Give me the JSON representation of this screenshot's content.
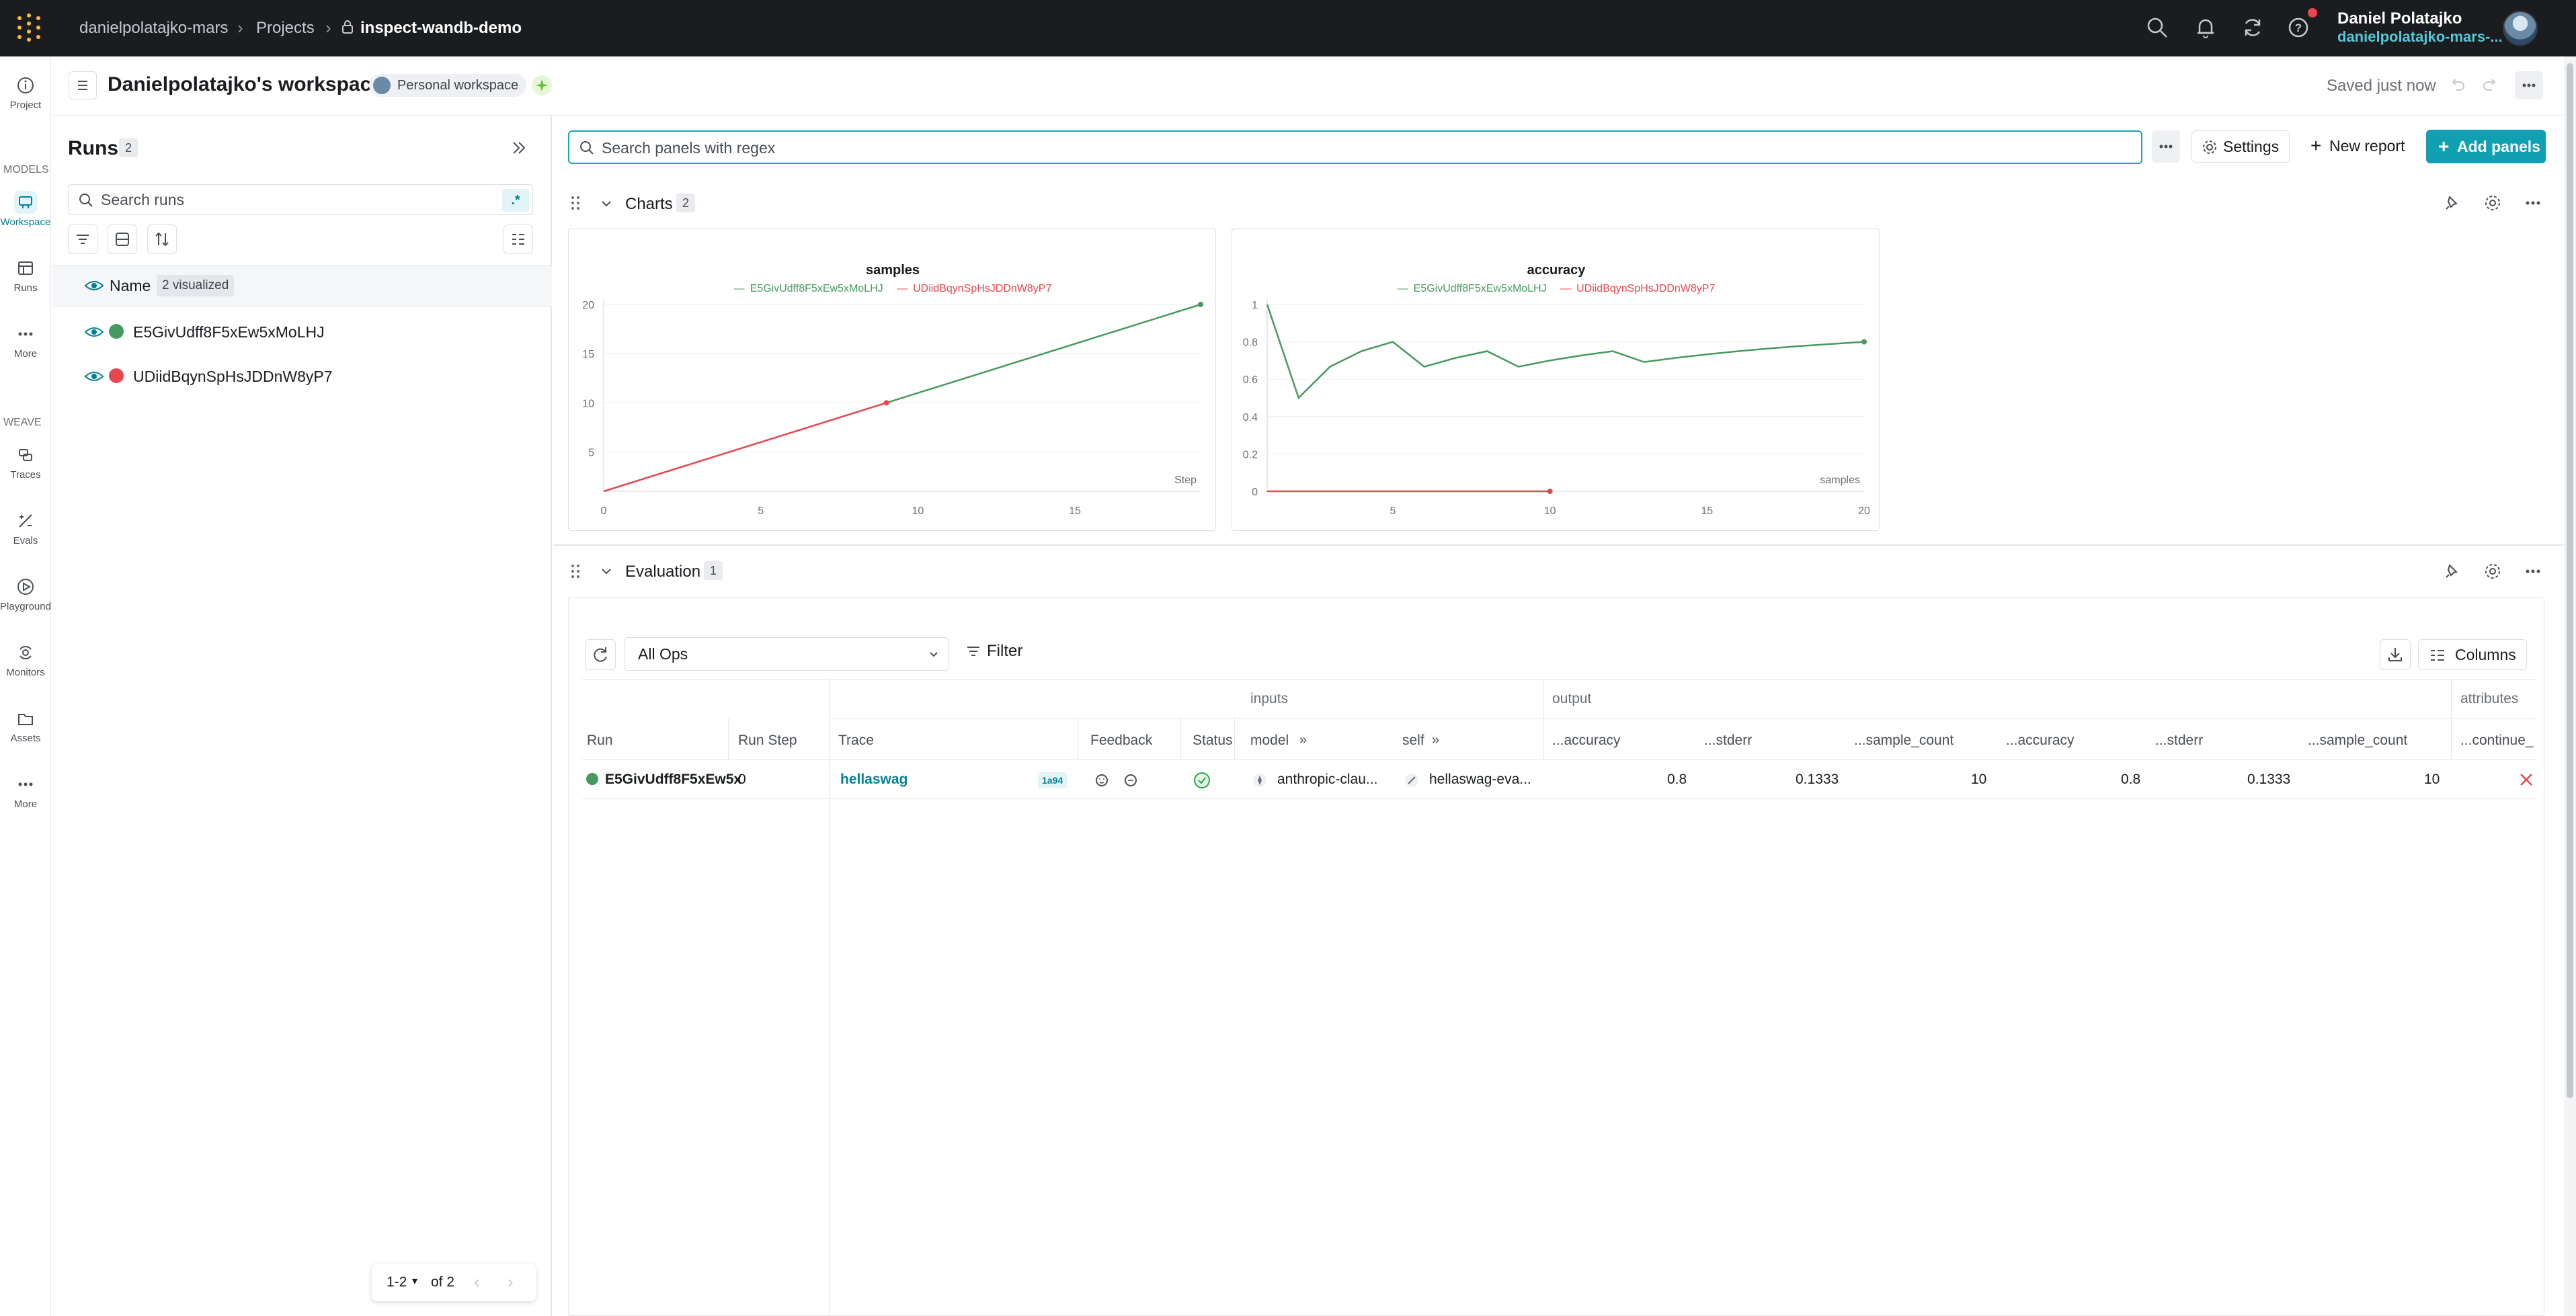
{
  "topbar": {
    "org": "danielpolatajko-mars",
    "projects": "Projects",
    "project": "inspect-wandb-demo",
    "user_name": "Daniel Polatajko",
    "user_org": "danielpolatajko-mars-..."
  },
  "leftnav": {
    "project_label": "Project",
    "models_section": "MODELS",
    "workspace_label": "Workspace",
    "runs_label": "Runs",
    "more_label": "More",
    "weave_section": "WEAVE",
    "traces_label": "Traces",
    "evals_label": "Evals",
    "playground_label": "Playground",
    "monitors_label": "Monitors",
    "assets_label": "Assets",
    "more2_label": "More"
  },
  "workspace": {
    "title": "Danielpolatajko's workspace",
    "badge": "Personal workspace",
    "saved": "Saved just now"
  },
  "runs": {
    "title": "Runs",
    "count": "2",
    "search_placeholder": "Search runs",
    "regex": ".*",
    "name_header": "Name",
    "visualized": "2 visualized",
    "items": [
      {
        "name": "E5GivUdff8F5xEw5xMoLHJ",
        "color": "#479a5f"
      },
      {
        "name": "UDiidBqynSpHsJDDnW8yP7",
        "color": "#e8464f"
      }
    ],
    "pager_range": "1-2",
    "pager_total": "of 2"
  },
  "toolbar": {
    "search_placeholder": "Search panels with regex",
    "settings": "Settings",
    "new_report": "New report",
    "add_panels": "Add panels"
  },
  "charts_section": {
    "title": "Charts",
    "count": "2"
  },
  "chart_data": [
    {
      "type": "line",
      "title": "samples",
      "xlabel": "Step",
      "ylabel": "",
      "xlim": [
        0,
        19
      ],
      "ylim": [
        1,
        20
      ],
      "xticks": [
        0,
        5,
        10,
        15
      ],
      "yticks": [
        5,
        10,
        15,
        20
      ],
      "series": [
        {
          "name": "E5GivUdff8F5xEw5xMoLHJ",
          "color": "#479a5f",
          "x": [
            9,
            19
          ],
          "y": [
            10,
            20
          ]
        },
        {
          "name": "UDiidBqynSpHsJDDnW8yP7",
          "color": "#e8464f",
          "x": [
            0,
            9
          ],
          "y": [
            1,
            10
          ]
        }
      ]
    },
    {
      "type": "line",
      "title": "accuracy",
      "xlabel": "samples",
      "ylabel": "",
      "xlim": [
        1,
        20
      ],
      "ylim": [
        0,
        1
      ],
      "xticks": [
        5,
        10,
        15,
        20
      ],
      "yticks": [
        0,
        0.2,
        0.4,
        0.6,
        0.8,
        1
      ],
      "series": [
        {
          "name": "E5GivUdff8F5xEw5xMoLHJ",
          "color": "#479a5f",
          "x": [
            1,
            2,
            3,
            4,
            5,
            6,
            7,
            8,
            9,
            10,
            11,
            12,
            13,
            14,
            15,
            16,
            17,
            18,
            19,
            20
          ],
          "y": [
            1,
            0.5,
            0.667,
            0.75,
            0.8,
            0.667,
            0.714,
            0.75,
            0.667,
            0.7,
            0.727,
            0.75,
            0.692,
            0.714,
            0.733,
            0.75,
            0.765,
            0.778,
            0.789,
            0.8
          ]
        },
        {
          "name": "UDiidBqynSpHsJDDnW8yP7",
          "color": "#e8464f",
          "x": [
            1,
            2,
            3,
            4,
            5,
            6,
            7,
            8,
            9,
            10
          ],
          "y": [
            0,
            0,
            0,
            0,
            0,
            0,
            0,
            0,
            0,
            0
          ]
        }
      ]
    }
  ],
  "evaluation": {
    "title": "Evaluation",
    "count": "1",
    "ops": "All Ops",
    "filter": "Filter",
    "columns": "Columns",
    "groups": {
      "inputs": "inputs",
      "output": "output",
      "attributes": "attributes"
    },
    "headers": [
      "Run",
      "Run Step",
      "Trace",
      "Feedback",
      "Status",
      "model",
      "self",
      "...accuracy",
      "...stderr",
      "...sample_count",
      "...accuracy",
      "...stderr",
      "...sample_count",
      "...continue_"
    ],
    "row": {
      "run": "E5GivUdff8F5xEw5x",
      "run_step": "0",
      "trace": "hellaswag",
      "trace_tag": "1a94",
      "model": "anthropic-clau...",
      "self": "hellaswag-eva...",
      "acc1": "0.8",
      "stderr1": "0.1333",
      "count1": "10",
      "acc2": "0.8",
      "stderr2": "0.1333",
      "count2": "10"
    }
  }
}
